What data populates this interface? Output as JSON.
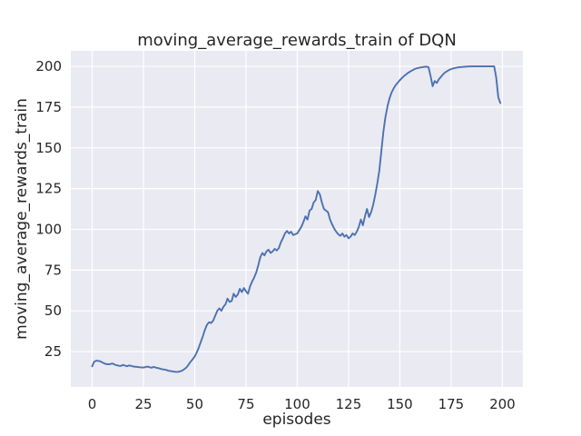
{
  "chart_data": {
    "type": "line",
    "title": "moving_average_rewards_train of DQN",
    "xlabel": "episodes",
    "ylabel": "moving_average_rewards_train",
    "x_ticks": [
      0,
      25,
      50,
      75,
      100,
      125,
      150,
      175,
      200
    ],
    "y_ticks": [
      25,
      50,
      75,
      100,
      125,
      150,
      175,
      200
    ],
    "xlim": [
      -10.4,
      210.0
    ],
    "ylim": [
      3.3,
      209.5
    ],
    "grid": true,
    "legend": false,
    "style": {
      "axes_background": "#eaeaf2",
      "grid_color": "#ffffff",
      "line_color": "#4c72b0",
      "text_color": "#262626",
      "line_width": 1.9
    },
    "series": [
      {
        "name": "moving_average_rewards_train",
        "x_start": 0,
        "x_step": 1,
        "y": [
          16.0,
          18.8,
          19.4,
          19.3,
          19.0,
          18.3,
          17.7,
          17.3,
          17.2,
          17.4,
          17.7,
          17.0,
          16.6,
          16.3,
          16.2,
          16.8,
          16.4,
          16.0,
          16.5,
          16.2,
          15.9,
          15.7,
          15.6,
          15.4,
          15.3,
          15.2,
          15.5,
          15.8,
          15.4,
          15.1,
          15.6,
          15.2,
          14.9,
          14.6,
          14.2,
          14.0,
          13.8,
          13.3,
          13.1,
          12.9,
          12.7,
          12.5,
          12.6,
          12.9,
          13.4,
          14.3,
          15.3,
          17.0,
          18.8,
          20.3,
          22.0,
          24.5,
          27.5,
          31.0,
          34.5,
          38.5,
          41.5,
          43.0,
          42.5,
          44.0,
          47.0,
          50.0,
          51.5,
          50.0,
          52.5,
          54.0,
          57.5,
          55.5,
          56.0,
          60.5,
          58.5,
          60.0,
          63.5,
          61.5,
          64.0,
          62.0,
          60.5,
          65.0,
          68.0,
          70.5,
          73.5,
          78.0,
          83.0,
          85.5,
          84.0,
          86.5,
          87.5,
          85.5,
          86.5,
          88.0,
          87.0,
          88.5,
          92.0,
          94.5,
          97.5,
          99.0,
          97.5,
          98.5,
          96.5,
          97.0,
          97.5,
          99.5,
          101.5,
          104.5,
          108.0,
          106.0,
          111.5,
          112.5,
          116.5,
          118.0,
          123.5,
          121.5,
          116.5,
          112.5,
          111.5,
          110.5,
          106.0,
          103.0,
          100.5,
          98.5,
          97.0,
          96.0,
          97.5,
          95.5,
          96.5,
          94.5,
          95.5,
          97.5,
          96.5,
          98.5,
          101.5,
          106.0,
          102.5,
          108.0,
          112.5,
          107.5,
          110.5,
          115.0,
          121.0,
          128.0,
          136.0,
          148.0,
          160.0,
          169.0,
          175.5,
          180.5,
          184.0,
          186.5,
          188.5,
          190.0,
          191.5,
          192.8,
          194.0,
          195.0,
          196.0,
          196.8,
          197.5,
          198.2,
          198.7,
          199.0,
          199.3,
          199.5,
          199.7,
          199.8,
          199.5,
          194.0,
          187.8,
          191.0,
          189.8,
          192.0,
          193.5,
          195.0,
          196.2,
          197.0,
          197.8,
          198.3,
          198.7,
          199.0,
          199.3,
          199.5,
          199.6,
          199.7,
          199.8,
          199.9,
          199.9,
          200.0,
          200.0,
          200.0,
          200.0,
          200.0,
          200.0,
          200.0,
          200.0,
          200.0,
          200.0,
          200.0,
          200.0,
          193.0,
          181.0,
          177.5
        ]
      }
    ]
  }
}
